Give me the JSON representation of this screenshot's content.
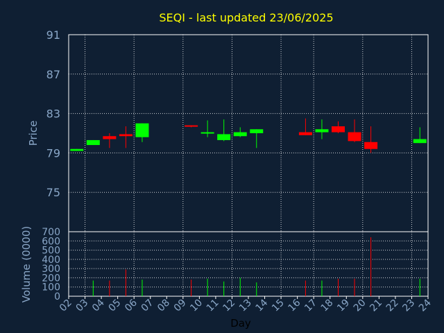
{
  "chart_data": {
    "type": "candlestick",
    "title": "SEQI - last updated 23/06/2025",
    "xlabel": "Day",
    "x_ticks": [
      "02",
      "03",
      "04",
      "05",
      "06",
      "07",
      "08",
      "09",
      "10",
      "11",
      "12",
      "13",
      "14",
      "15",
      "16",
      "17",
      "18",
      "19",
      "20",
      "21",
      "22",
      "23",
      "24"
    ],
    "price_panel": {
      "ylabel": "Price",
      "ylim": [
        71,
        91
      ],
      "y_ticks": [
        75,
        79,
        83,
        87,
        91
      ]
    },
    "volume_panel": {
      "ylabel": "Volume (0000)",
      "ylim": [
        0,
        700
      ],
      "y_ticks": [
        0,
        100,
        200,
        300,
        400,
        500,
        600,
        700
      ]
    },
    "candles": [
      {
        "day": 2,
        "open": 79.2,
        "close": 79.4,
        "high": 79.4,
        "low": 79.2,
        "volume": 0
      },
      {
        "day": 3,
        "open": 79.8,
        "close": 80.3,
        "high": 80.3,
        "low": 79.8,
        "volume": 170
      },
      {
        "day": 4,
        "open": 80.7,
        "close": 80.4,
        "high": 81.0,
        "low": 79.5,
        "volume": 170
      },
      {
        "day": 5,
        "open": 80.9,
        "close": 80.7,
        "high": 81.7,
        "low": 79.5,
        "volume": 290
      },
      {
        "day": 6,
        "open": 80.6,
        "close": 82.0,
        "high": 82.0,
        "low": 80.1,
        "volume": 180
      },
      {
        "day": 9,
        "open": 81.8,
        "close": 81.7,
        "high": 81.8,
        "low": 81.6,
        "volume": 180
      },
      {
        "day": 10,
        "open": 81.0,
        "close": 81.1,
        "high": 82.3,
        "low": 80.6,
        "volume": 190
      },
      {
        "day": 11,
        "open": 80.3,
        "close": 80.9,
        "high": 82.4,
        "low": 80.2,
        "volume": 160
      },
      {
        "day": 12,
        "open": 80.7,
        "close": 81.1,
        "high": 81.6,
        "low": 80.6,
        "volume": 200
      },
      {
        "day": 13,
        "open": 81.0,
        "close": 81.4,
        "high": 81.4,
        "low": 79.5,
        "volume": 150
      },
      {
        "day": 16,
        "open": 81.1,
        "close": 80.8,
        "high": 82.5,
        "low": 80.8,
        "volume": 170
      },
      {
        "day": 17,
        "open": 81.1,
        "close": 81.4,
        "high": 82.4,
        "low": 80.4,
        "volume": 170
      },
      {
        "day": 18,
        "open": 81.7,
        "close": 81.1,
        "high": 82.2,
        "low": 81.0,
        "volume": 190
      },
      {
        "day": 19,
        "open": 81.1,
        "close": 80.2,
        "high": 82.4,
        "low": 80.1,
        "volume": 190
      },
      {
        "day": 20,
        "open": 80.1,
        "close": 79.4,
        "high": 81.7,
        "low": 79.0,
        "volume": 640
      },
      {
        "day": 23,
        "open": 80.0,
        "close": 80.4,
        "high": 81.6,
        "low": 80.0,
        "volume": 190
      }
    ],
    "up_color": "#00ff00",
    "down_color": "#ff0000",
    "grid": true
  },
  "colors": {
    "background": "#0f1f33",
    "plot_background": "#0f1f33",
    "title": "#ffff00",
    "text": "#8aa7c8",
    "grid": "#ffffff"
  }
}
